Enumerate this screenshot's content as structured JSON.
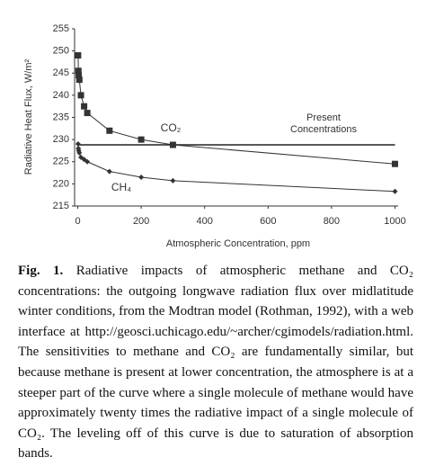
{
  "chart_data": {
    "type": "line",
    "x_label": "Atmospheric Concentration, ppm",
    "y_label": "Radiative Heat Flux, W/m²",
    "x": [
      1,
      2,
      3,
      5,
      10,
      20,
      30,
      100,
      200,
      300,
      1000
    ],
    "series": [
      {
        "name": "CO₂",
        "color": "#333333",
        "marker": "square",
        "values": [
          249,
          245.5,
          244.5,
          243.5,
          240,
          237.5,
          236,
          232,
          230,
          228.8,
          224.5
        ]
      },
      {
        "name": "CH₄",
        "color": "#333333",
        "marker": "diamond",
        "values": [
          229,
          228,
          227.5,
          227,
          226,
          225.5,
          225,
          222.8,
          221.5,
          220.7,
          218.3
        ]
      }
    ],
    "reference_line": {
      "label_lines": [
        "Present",
        "Concentrations"
      ],
      "value": 228.8
    },
    "xlim": [
      -10,
      1010
    ],
    "xticks": [
      0,
      200,
      400,
      600,
      800,
      1000
    ],
    "ylim": [
      215,
      255
    ],
    "yticks": [
      215,
      220,
      225,
      230,
      235,
      240,
      245,
      250,
      255
    ],
    "grid": false
  },
  "caption": {
    "label": "Fig. 1.",
    "text": "Radiative impacts of atmospheric methane and CO₂ concentrations: the outgoing longwave radiation flux over midlatitude winter conditions, from the Modtran model (Rothman, 1992), with a web interface at http://geosci.uchicago.edu/~archer/cgimodels/radiation.html. The sensitivities to methane and CO₂ are fundamentally similar, but because methane is present at lower concentration, the atmosphere is at a steeper part of the curve where a single molecule of methane would have approximately twenty times the radiative impact of a single molecule of CO₂. The leveling off of this curve is due to saturation of absorption bands."
  }
}
